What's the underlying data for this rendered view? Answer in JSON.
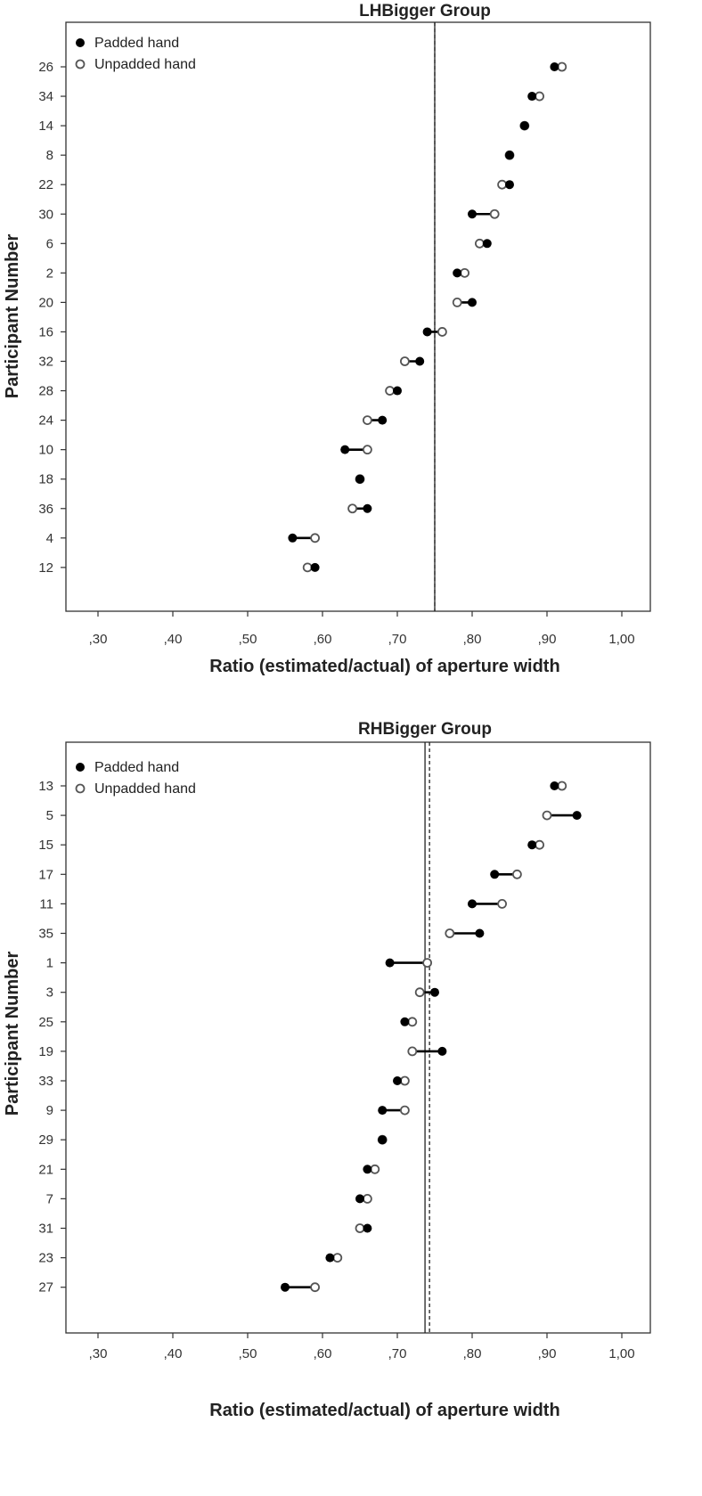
{
  "chart_data": [
    {
      "type": "dot-pair",
      "title": "LHBigger Group",
      "xlabel": "Ratio (estimated/actual) of aperture width",
      "ylabel": "Participant Number",
      "xlim": [
        0.27,
        1.03
      ],
      "xticks": [
        0.3,
        0.4,
        0.5,
        0.6,
        0.7,
        0.8,
        0.9,
        1.0
      ],
      "xtick_labels": [
        ",30",
        ",40",
        ",50",
        ",60",
        ",70",
        ",80",
        ",90",
        "1,00"
      ],
      "legend": {
        "position": "top-left",
        "entries": [
          {
            "name": "Padded hand",
            "marker": "filled-circle"
          },
          {
            "name": "Unpadded hand",
            "marker": "open-circle"
          }
        ]
      },
      "reference_lines": [
        {
          "value": 0.75,
          "style": "solid"
        },
        {
          "value": 0.75,
          "style": "dashed"
        }
      ],
      "participants": [
        "26",
        "34",
        "14",
        "8",
        "22",
        "30",
        "6",
        "2",
        "20",
        "16",
        "32",
        "28",
        "24",
        "10",
        "18",
        "36",
        "4",
        "12"
      ],
      "series": [
        {
          "name": "Padded hand",
          "values": [
            0.91,
            0.88,
            0.87,
            0.85,
            0.85,
            0.8,
            0.82,
            0.78,
            0.8,
            0.74,
            0.73,
            0.7,
            0.68,
            0.63,
            0.65,
            0.66,
            0.56,
            0.59
          ]
        },
        {
          "name": "Unpadded hand",
          "values": [
            0.92,
            0.89,
            0.87,
            0.85,
            0.84,
            0.83,
            0.81,
            0.79,
            0.78,
            0.76,
            0.71,
            0.69,
            0.66,
            0.66,
            0.65,
            0.64,
            0.59,
            0.58
          ]
        }
      ]
    },
    {
      "type": "dot-pair",
      "title": "RHBigger Group",
      "xlabel": "Ratio (estimated/actual) of aperture width",
      "ylabel": "Participant Number",
      "xlim": [
        0.27,
        1.03
      ],
      "xticks": [
        0.3,
        0.4,
        0.5,
        0.6,
        0.7,
        0.8,
        0.9,
        1.0
      ],
      "xtick_labels": [
        ",30",
        ",40",
        ",50",
        ",60",
        ",70",
        ",80",
        ",90",
        "1,00"
      ],
      "legend": {
        "position": "top-left",
        "entries": [
          {
            "name": "Padded hand",
            "marker": "filled-circle"
          },
          {
            "name": "Unpadded hand",
            "marker": "open-circle"
          }
        ]
      },
      "reference_lines": [
        {
          "value": 0.737,
          "style": "solid"
        },
        {
          "value": 0.743,
          "style": "dashed"
        }
      ],
      "participants": [
        "13",
        "5",
        "15",
        "17",
        "11",
        "35",
        "1",
        "3",
        "25",
        "19",
        "33",
        "9",
        "29",
        "21",
        "7",
        "31",
        "23",
        "27"
      ],
      "series": [
        {
          "name": "Padded hand",
          "values": [
            0.91,
            0.94,
            0.88,
            0.83,
            0.8,
            0.81,
            0.69,
            0.75,
            0.71,
            0.76,
            0.7,
            0.68,
            0.68,
            0.66,
            0.65,
            0.66,
            0.61,
            0.55
          ]
        },
        {
          "name": "Unpadded hand",
          "values": [
            0.92,
            0.9,
            0.89,
            0.86,
            0.84,
            0.77,
            0.74,
            0.73,
            0.72,
            0.72,
            0.71,
            0.71,
            0.68,
            0.67,
            0.66,
            0.65,
            0.62,
            0.59
          ]
        }
      ]
    }
  ]
}
